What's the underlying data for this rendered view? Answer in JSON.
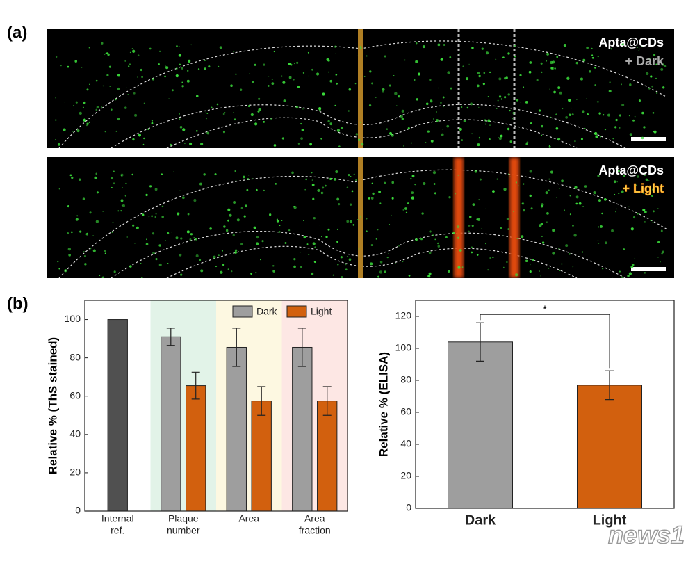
{
  "panel_labels": [
    "(a)",
    "(b)"
  ],
  "images": [
    {
      "title": "Apta@CDs",
      "condition": "+ Dark"
    },
    {
      "title": "Apta@CDs",
      "condition": "+ Light"
    }
  ],
  "watermark": "news1",
  "chart_data": [
    {
      "type": "bar",
      "y_label": "Relative % (ThS stained)",
      "categories": [
        [
          "Internal",
          "ref."
        ],
        [
          "Plaque",
          "number"
        ],
        [
          "Area"
        ],
        [
          "Area",
          "fraction"
        ]
      ],
      "band_colors": [
        null,
        "#e2f3e8",
        "#fdf8e1",
        "#fde7e4"
      ],
      "reference_values": [
        100,
        null,
        null,
        null
      ],
      "reference_color": "#505050",
      "series": [
        {
          "name": "Dark",
          "color": "#9e9e9e",
          "values": [
            null,
            91,
            85.5,
            85.5
          ],
          "errors": [
            null,
            4.5,
            10,
            10
          ]
        },
        {
          "name": "Light",
          "color": "#d2600e",
          "values": [
            null,
            65.5,
            57.5,
            57.5
          ],
          "errors": [
            null,
            7,
            7.5,
            7.5
          ]
        }
      ],
      "ylim": [
        0,
        110
      ],
      "yticks": [
        0,
        20,
        40,
        60,
        80,
        100
      ],
      "legend": "upper right"
    },
    {
      "type": "bar",
      "y_label": "Relative % (ELISA)",
      "categories": [
        [
          "Dark"
        ],
        [
          "Light"
        ]
      ],
      "series": [
        {
          "colors": [
            "#9e9e9e",
            "#d2600e"
          ],
          "values": [
            104,
            77
          ],
          "errors": [
            12,
            9
          ]
        }
      ],
      "ylim": [
        0,
        130
      ],
      "yticks": [
        0,
        20,
        40,
        60,
        80,
        100,
        120
      ],
      "annotations": [
        {
          "text": "*",
          "from": 0,
          "to": 1
        }
      ]
    }
  ]
}
